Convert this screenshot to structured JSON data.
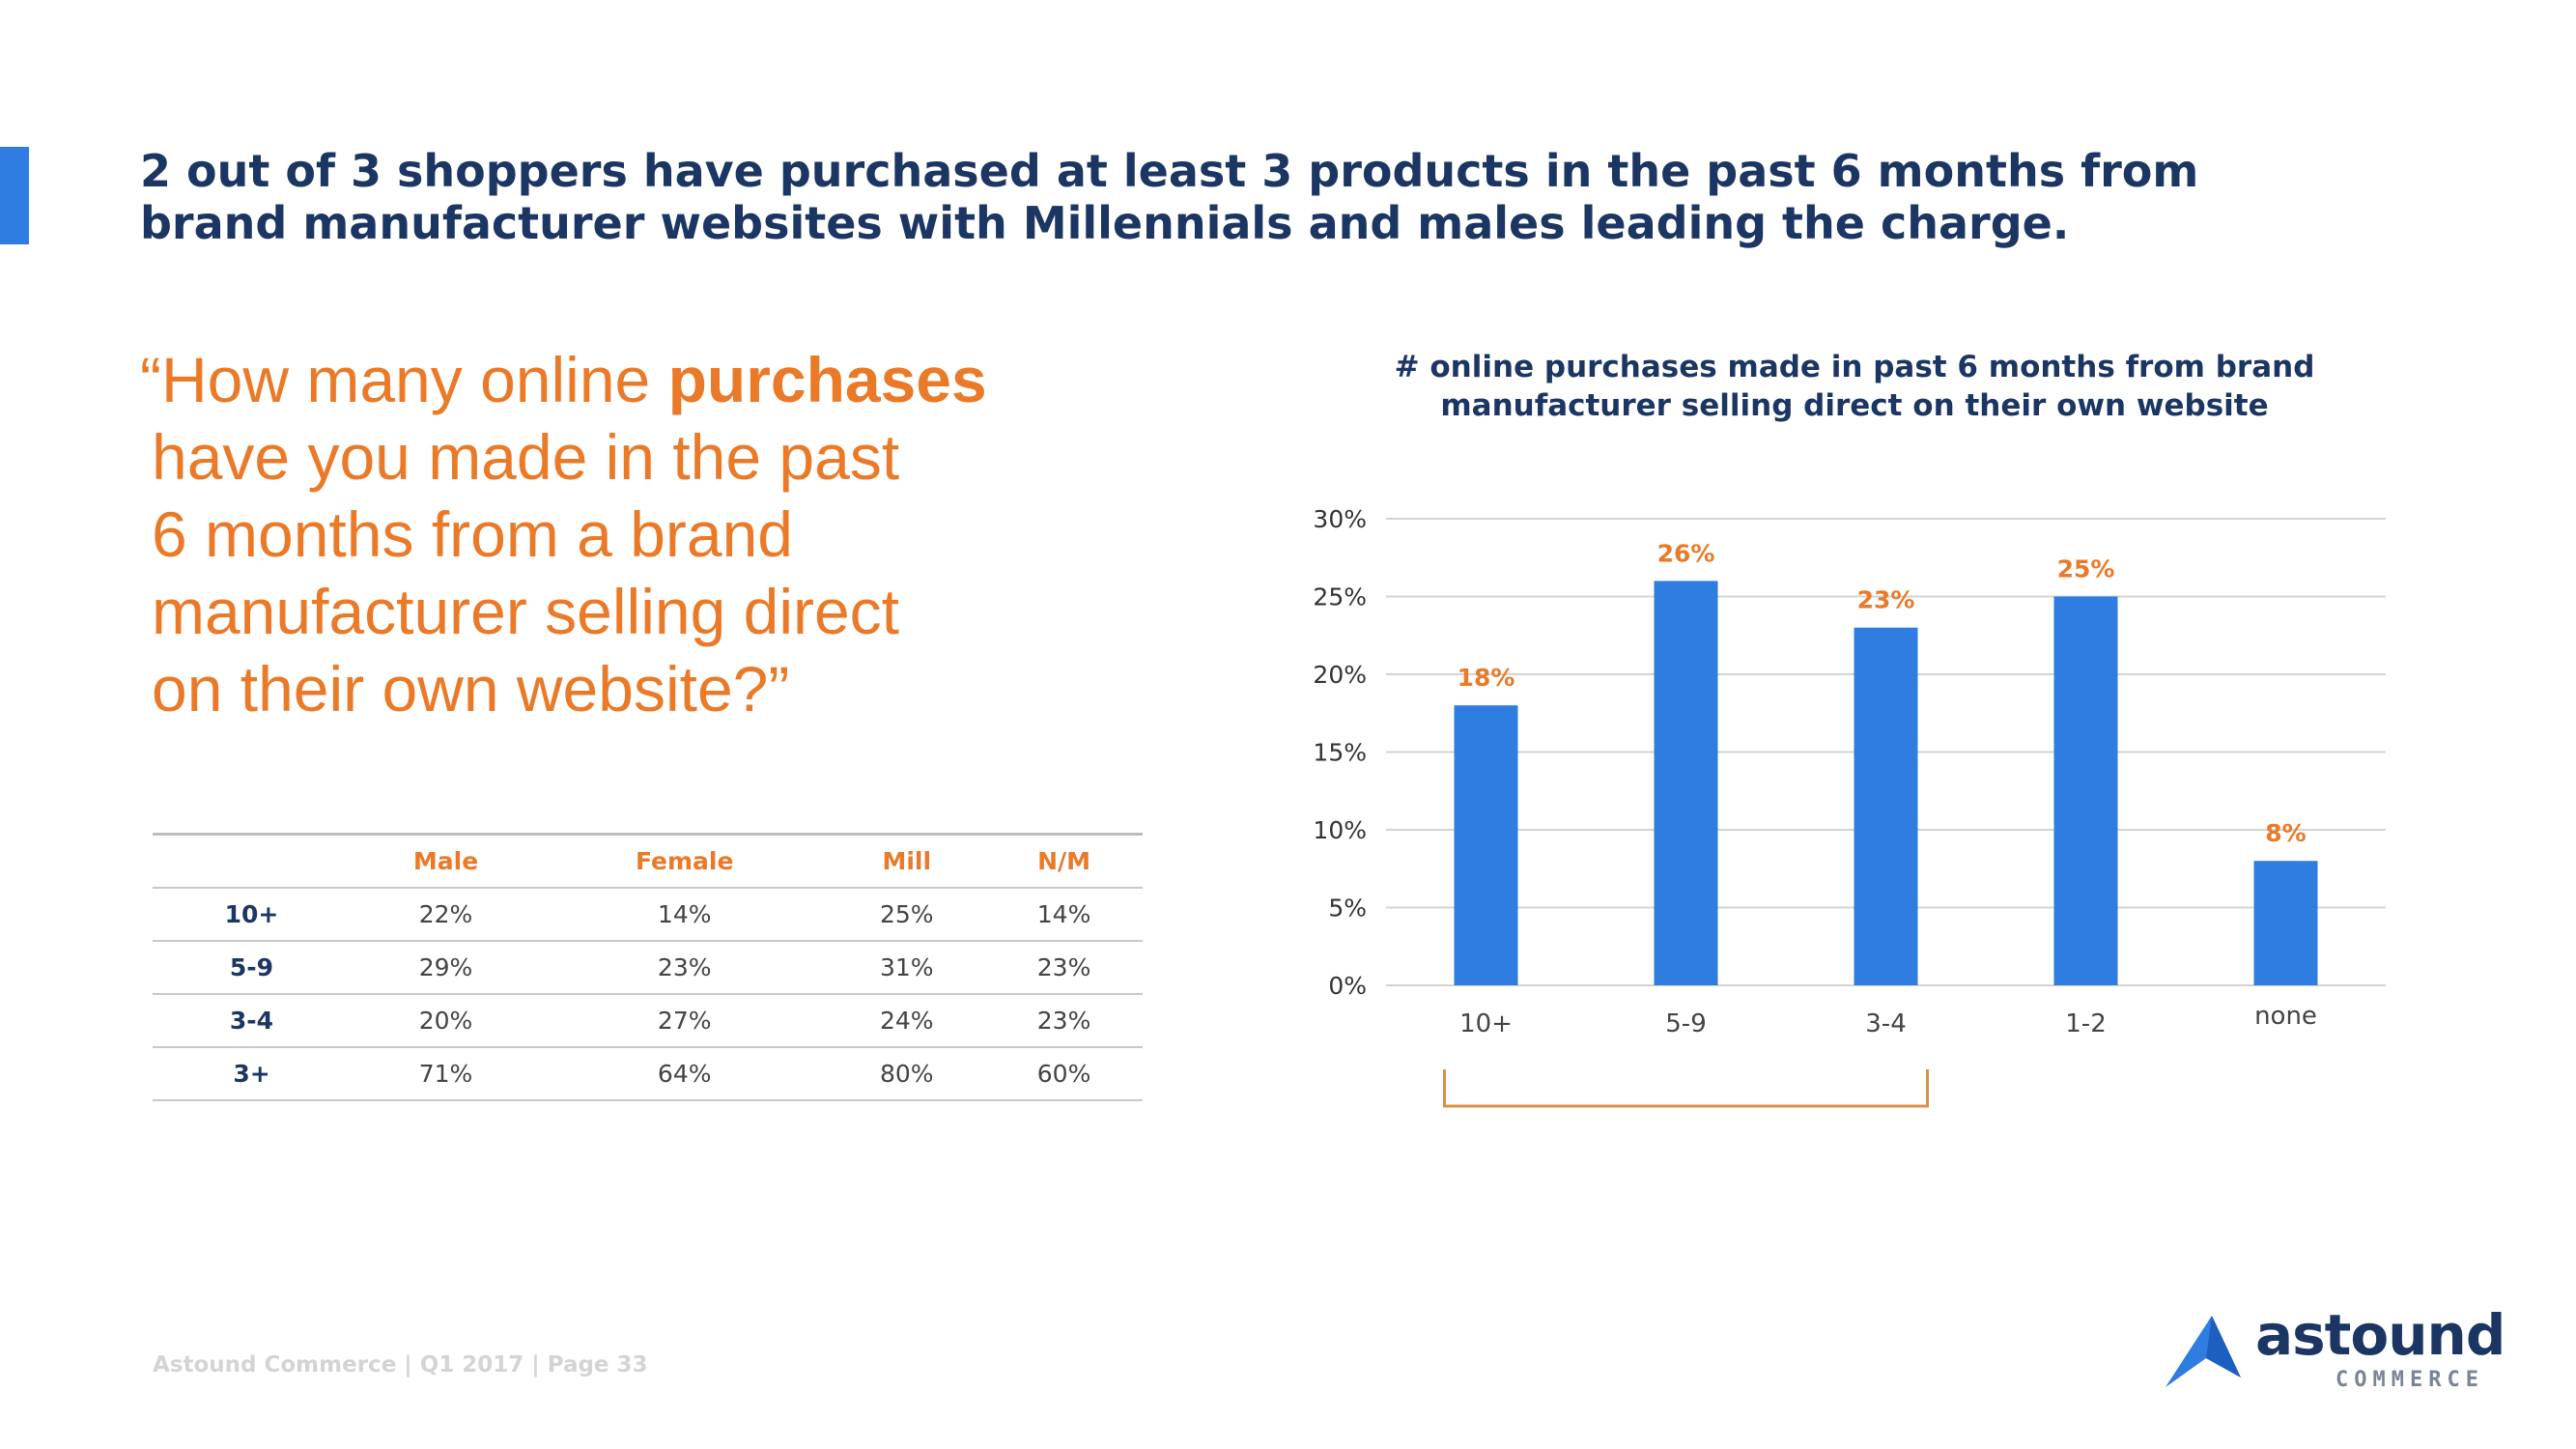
{
  "headline": {
    "line1": "2 out of 3 shoppers have purchased at least 3 products in the past 6 months from",
    "line2": "brand manufacturer websites with Millennials and males leading the charge."
  },
  "question": {
    "prefix": "“How many online ",
    "emphasis": "purchases",
    "line2": "have you made in the past",
    "line3": "6 months from a brand",
    "line4": "manufacturer selling direct",
    "line5": "on their own website?”"
  },
  "table": {
    "columns": [
      "",
      "Male",
      "Female",
      "Mill",
      "N/M"
    ],
    "rows": [
      {
        "label": "10+",
        "values": [
          "22%",
          "14%",
          "25%",
          "14%"
        ]
      },
      {
        "label": "5-9",
        "values": [
          "29%",
          "23%",
          "31%",
          "23%"
        ]
      },
      {
        "label": "3-4",
        "values": [
          "20%",
          "27%",
          "24%",
          "23%"
        ]
      },
      {
        "label": "3+",
        "values": [
          "71%",
          "64%",
          "80%",
          "60%"
        ]
      }
    ]
  },
  "chart_data": {
    "type": "bar",
    "title_line1": "# online purchases made in past 6 months from brand",
    "title_line2": "manufacturer selling direct on their own website",
    "categories": [
      "10+",
      "5-9",
      "3-4",
      "1-2",
      "none"
    ],
    "values": [
      18,
      26,
      23,
      25,
      8
    ],
    "data_labels": [
      "18%",
      "26%",
      "23%",
      "25%",
      "8%"
    ],
    "ylim": [
      0,
      30
    ],
    "yticks": [
      0,
      5,
      10,
      15,
      20,
      25,
      30
    ],
    "ytick_labels": [
      "0%",
      "5%",
      "10%",
      "15%",
      "20%",
      "25%",
      "30%"
    ],
    "xlabel": "",
    "ylabel": "",
    "grid": true,
    "bracket_span": [
      "10+",
      "3-4"
    ],
    "bar_color": "#2f7de1",
    "label_color": "#ea7a28",
    "bracket_color": "#d99148"
  },
  "footer": {
    "note": "Astound Commerce | Q1 2017 | Page 33"
  },
  "logo": {
    "word": "astound",
    "sub": "COMMERCE"
  },
  "colors": {
    "accent": "#2f7de1",
    "navy": "#1c3663",
    "orange": "#ea7a28"
  }
}
